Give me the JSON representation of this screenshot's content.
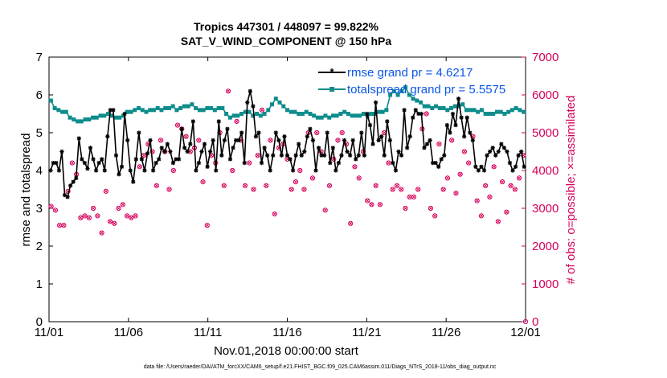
{
  "chart_data": {
    "type": "line",
    "title": "Tropics 447301 / 448097 = 99.822%",
    "subtitle": "SAT_V_WIND_COMPONENT @ 150 hPa",
    "xlabel": "Nov.01,2018 00:00:00 start",
    "ylabel": "rmse and totalspread",
    "ylabel_right": "# of obs: o=possible; ×=assimilated",
    "footnote": "data file: /Users/raeder/DAI/ATM_forcXX/CAM6_setup/f.e21.FHIST_BGC.f09_025.CAM6assim.011/Diags_NTrS_2018-11/obs_diag_output.nc",
    "x_ticks": [
      "11/01",
      "11/06",
      "11/11",
      "11/16",
      "11/21",
      "11/26",
      "12/01"
    ],
    "x_range_days": [
      0,
      30
    ],
    "ylim": [
      0,
      7
    ],
    "y_ticks": [
      "0",
      "1",
      "2",
      "3",
      "4",
      "5",
      "6",
      "7"
    ],
    "ylim_right": [
      0,
      7000
    ],
    "y_ticks_right": [
      "0",
      "1000",
      "2000",
      "3000",
      "4000",
      "5000",
      "6000",
      "7000"
    ],
    "legend": {
      "position": "top-right",
      "entries": [
        "rmse grand pr = 4.6217",
        "totalspread grand pr = 5.5575"
      ]
    },
    "colors": {
      "rmse": "#000000",
      "totalspread": "#0f8c8c",
      "obs": "#d6005b",
      "legend_text": "#0b57e8"
    },
    "series": [
      {
        "name": "rmse",
        "axis": "left",
        "values": [
          4.0,
          4.2,
          4.2,
          4.0,
          4.5,
          3.35,
          3.3,
          3.6,
          3.7,
          3.8,
          4.85,
          4.3,
          4.2,
          4.05,
          4.6,
          4.3,
          4.0,
          4.2,
          4.3,
          4.0,
          4.9,
          5.6,
          5.6,
          4.4,
          3.9,
          4.1,
          5.5,
          4.8,
          4.0,
          3.7,
          4.3,
          5.0,
          4.3,
          4.0,
          4.45,
          4.8,
          4.0,
          4.2,
          4.3,
          4.6,
          4.5,
          4.7,
          4.5,
          4.2,
          4.3,
          4.3,
          5.1,
          4.6,
          4.5,
          4.7,
          5.3,
          4.0,
          4.2,
          4.5,
          4.7,
          4.1,
          4.5,
          4.8,
          4.0,
          5.3,
          4.4,
          4.8,
          5.1,
          4.3,
          4.6,
          4.8,
          4.8,
          5.0,
          4.2,
          5.8,
          6.1,
          5.7,
          4.9,
          5.0,
          4.2,
          4.6,
          4.4,
          4.0,
          4.4,
          5.0,
          4.8,
          4.4,
          4.9,
          4.4,
          4.3,
          4.0,
          4.4,
          4.7,
          4.4,
          4.5,
          4.9,
          5.1,
          4.8,
          4.0,
          4.6,
          4.4,
          4.4,
          5.0,
          4.2,
          4.6,
          4.0,
          4.2,
          4.4,
          4.8,
          4.5,
          4.4,
          4.8,
          4.3,
          4.4,
          5.0,
          4.4,
          5.5,
          5.2,
          4.7,
          5.8,
          4.8,
          4.9,
          4.4,
          5.3,
          4.8,
          4.2,
          4.0,
          4.5,
          4.4,
          5.6,
          4.6,
          4.9,
          5.4,
          5.6,
          5.5,
          5.5,
          4.6,
          4.7,
          4.8,
          4.2,
          4.2,
          4.1,
          4.3,
          4.4,
          5.2,
          5.0,
          5.5,
          5.2,
          5.9,
          5.4,
          4.9,
          5.4,
          5.0,
          4.8,
          4.1,
          4.0,
          4.1,
          4.0,
          4.4,
          4.5,
          4.6,
          4.4,
          4.5,
          4.7,
          4.6,
          4.5,
          4.2,
          4.0,
          4.1,
          4.4,
          4.5,
          4.1
        ]
      },
      {
        "name": "totalspread",
        "axis": "left",
        "values": [
          5.85,
          5.65,
          5.6,
          5.55,
          5.55,
          5.4,
          5.35,
          5.3,
          5.3,
          5.35,
          5.35,
          5.4,
          5.4,
          5.45,
          5.45,
          5.5,
          5.45,
          5.4,
          5.4,
          5.45,
          5.55,
          5.55,
          5.6,
          5.65,
          5.6,
          5.55,
          5.6,
          5.6,
          5.65,
          5.6,
          5.65,
          5.65,
          5.7,
          5.6,
          5.65,
          5.7,
          5.7,
          5.75,
          5.65,
          5.6,
          5.6,
          5.65,
          5.65,
          5.6,
          5.65,
          5.65,
          5.5,
          5.4,
          5.45,
          5.45,
          5.5,
          5.55,
          5.55,
          5.45,
          5.5,
          5.45,
          5.5,
          5.6,
          5.75,
          5.9,
          5.8,
          5.7,
          5.6,
          5.55,
          5.55,
          5.5,
          5.5,
          5.55,
          5.5,
          5.45,
          5.4,
          5.4,
          5.45,
          5.4,
          5.45,
          5.45,
          5.5,
          5.55,
          5.5,
          5.45,
          5.45,
          5.45,
          5.5,
          5.45,
          5.5,
          5.5,
          5.55,
          5.55,
          5.6,
          6.0,
          6.1,
          6.0,
          6.1,
          6.2,
          6.0,
          5.9,
          5.85,
          5.8,
          5.7,
          5.7,
          5.65,
          5.7,
          5.65,
          5.65,
          5.6,
          5.65,
          5.7,
          5.7,
          5.75,
          5.6,
          5.6,
          5.6,
          5.55,
          5.6,
          5.5,
          5.5,
          5.5,
          5.55,
          5.55,
          5.5,
          5.55,
          5.6,
          5.65,
          5.6,
          5.55
        ]
      },
      {
        "name": "obs possible",
        "axis": "right",
        "values": [
          3050,
          2950,
          2550,
          2550,
          3450,
          4200,
          3900,
          2750,
          2800,
          2750,
          3000,
          2800,
          2350,
          3450,
          2650,
          2600,
          3000,
          3100,
          2800,
          2750,
          2800,
          4100,
          4400,
          4700,
          4500,
          3600,
          4800,
          4500,
          3500,
          4000,
          5200,
          5100,
          4900,
          4500,
          4600,
          4800,
          3700,
          2550,
          4400,
          4200,
          5000,
          3600,
          6100,
          4000,
          5300,
          4800,
          3600,
          4200,
          3500,
          4400,
          5600,
          3600,
          4800,
          2850,
          4600,
          4700,
          4300,
          3500,
          3700,
          4000,
          3500,
          5000,
          3800,
          5000,
          4500,
          2950,
          3600,
          4300,
          4800,
          5000,
          4700,
          2600,
          4100,
          3800,
          4500,
          3200,
          3100,
          3600,
          3100,
          5000,
          4200,
          3500,
          3600,
          3500,
          3000,
          3300,
          3300,
          3500,
          5100,
          5500,
          3000,
          2800,
          4700,
          3500,
          3800,
          4800,
          3400,
          3900,
          4500,
          4200,
          4900,
          3200,
          2800,
          3600,
          3300,
          4100,
          2650,
          3700,
          2900,
          3600,
          3500,
          3800,
          4400
        ]
      }
    ]
  }
}
